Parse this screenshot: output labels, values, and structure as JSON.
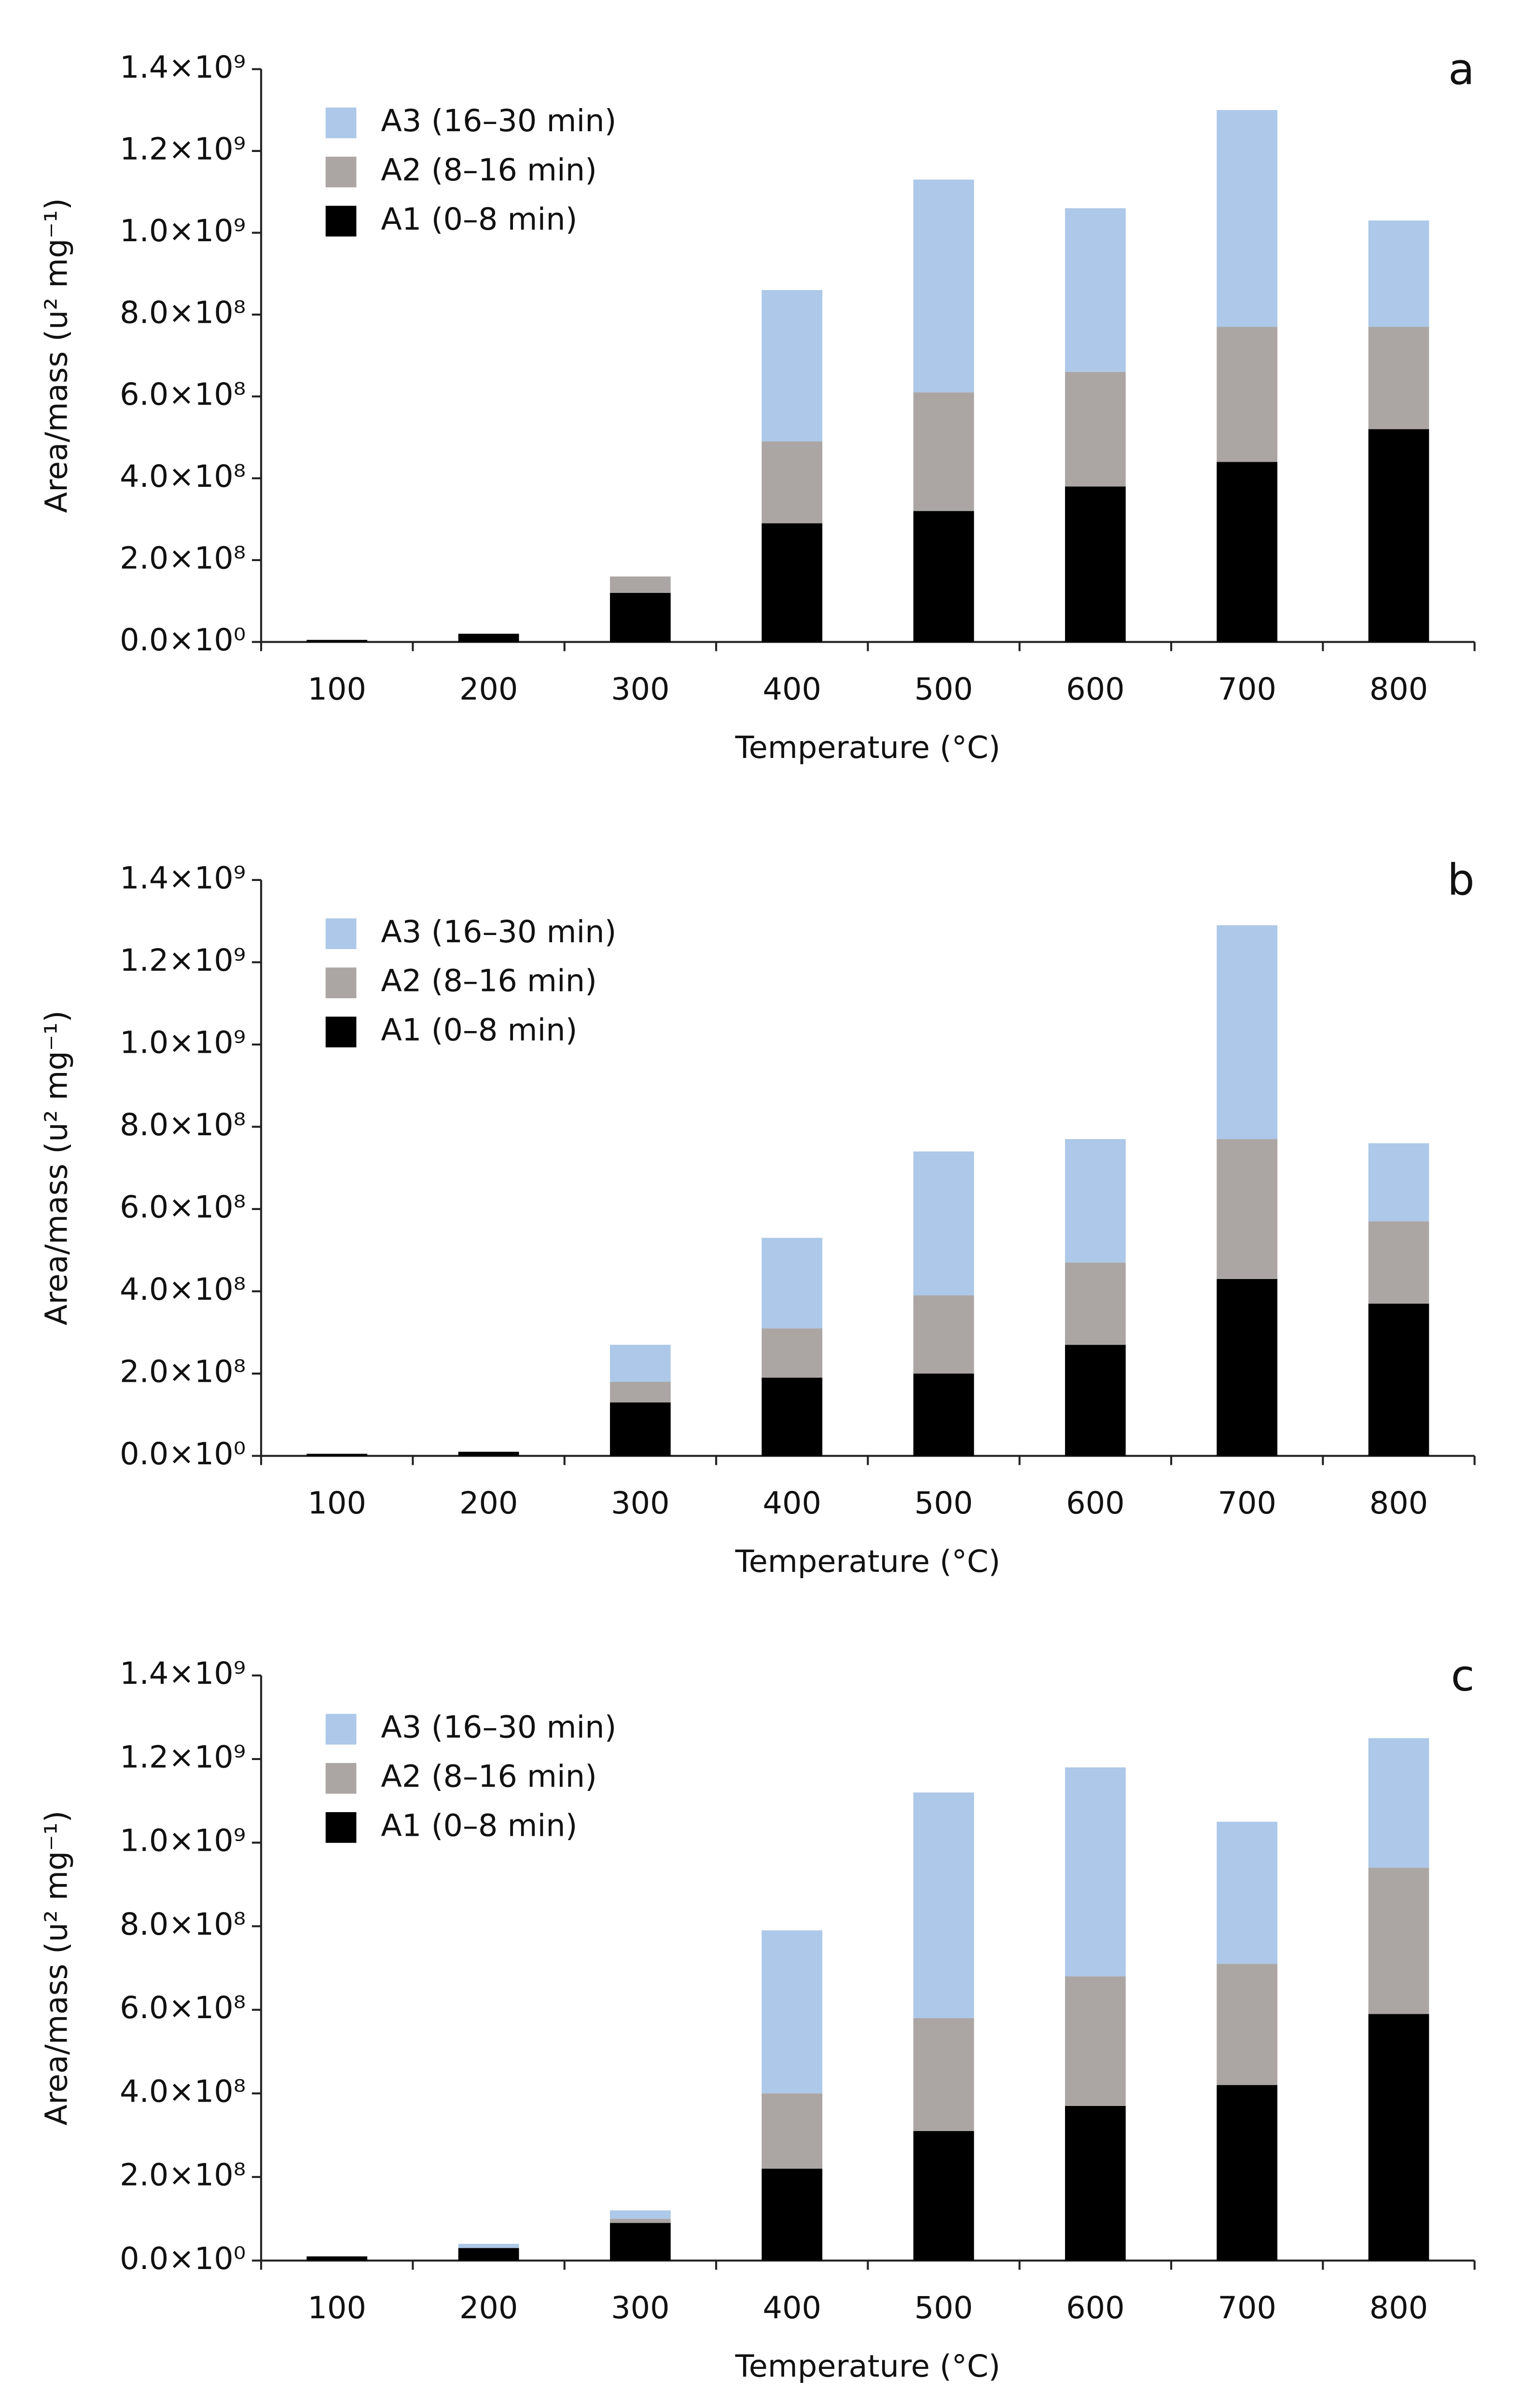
{
  "chart_data": [
    {
      "type": "stacked_bar",
      "panel_label": "a",
      "x_label": "Temperature (°C)",
      "y_label": "Area/mass (u² mg⁻¹)",
      "categories": [
        "100",
        "200",
        "300",
        "400",
        "500",
        "600",
        "700",
        "800"
      ],
      "series": [
        {
          "name": "A1 (0–8 min)",
          "color": "#000000",
          "values": [
            5000000,
            20000000,
            120000000,
            290000000,
            320000000,
            380000000,
            440000000,
            520000000
          ]
        },
        {
          "name": "A2 (8–16 min)",
          "color": "#aba6a4",
          "values": [
            0,
            0,
            40000000,
            200000000,
            290000000,
            280000000,
            330000000,
            250000000
          ]
        },
        {
          "name": "A3 (16–30 min)",
          "color": "#adc8e8",
          "values": [
            0,
            0,
            0,
            370000000,
            520000000,
            400000000,
            530000000,
            260000000
          ]
        }
      ],
      "ylim": [
        0,
        1400000000
      ],
      "yticks": [
        {
          "value": 0,
          "label": "0.0×10⁰"
        },
        {
          "value": 200000000,
          "label": "2.0×10⁸"
        },
        {
          "value": 400000000,
          "label": "4.0×10⁸"
        },
        {
          "value": 600000000,
          "label": "6.0×10⁸"
        },
        {
          "value": 800000000,
          "label": "8.0×10⁸"
        },
        {
          "value": 1000000000,
          "label": "1.0×10⁹"
        },
        {
          "value": 1200000000,
          "label": "1.2×10⁹"
        },
        {
          "value": 1400000000,
          "label": "1.4×10⁹"
        }
      ],
      "legend": "upper-left"
    },
    {
      "type": "stacked_bar",
      "panel_label": "b",
      "x_label": "Temperature (°C)",
      "y_label": "Area/mass (u² mg⁻¹)",
      "categories": [
        "100",
        "200",
        "300",
        "400",
        "500",
        "600",
        "700",
        "800"
      ],
      "series": [
        {
          "name": "A1 (0–8 min)",
          "color": "#000000",
          "values": [
            5000000,
            10000000,
            130000000,
            190000000,
            200000000,
            270000000,
            430000000,
            370000000
          ]
        },
        {
          "name": "A2 (8–16 min)",
          "color": "#aba6a4",
          "values": [
            0,
            0,
            50000000,
            120000000,
            190000000,
            200000000,
            340000000,
            200000000
          ]
        },
        {
          "name": "A3 (16–30 min)",
          "color": "#adc8e8",
          "values": [
            0,
            0,
            90000000,
            220000000,
            350000000,
            300000000,
            520000000,
            190000000
          ]
        }
      ],
      "ylim": [
        0,
        1400000000
      ],
      "yticks": [
        {
          "value": 0,
          "label": "0.0×10⁰"
        },
        {
          "value": 200000000,
          "label": "2.0×10⁸"
        },
        {
          "value": 400000000,
          "label": "4.0×10⁸"
        },
        {
          "value": 600000000,
          "label": "6.0×10⁸"
        },
        {
          "value": 800000000,
          "label": "8.0×10⁸"
        },
        {
          "value": 1000000000,
          "label": "1.0×10⁹"
        },
        {
          "value": 1200000000,
          "label": "1.2×10⁹"
        },
        {
          "value": 1400000000,
          "label": "1.4×10⁹"
        }
      ],
      "legend": "upper-left"
    },
    {
      "type": "stacked_bar",
      "panel_label": "c",
      "x_label": "Temperature (°C)",
      "y_label": "Area/mass (u² mg⁻¹)",
      "categories": [
        "100",
        "200",
        "300",
        "400",
        "500",
        "600",
        "700",
        "800"
      ],
      "series": [
        {
          "name": "A1 (0–8 min)",
          "color": "#000000",
          "values": [
            10000000,
            30000000,
            90000000,
            220000000,
            310000000,
            370000000,
            420000000,
            590000000
          ]
        },
        {
          "name": "A2 (8–16 min)",
          "color": "#aba6a4",
          "values": [
            0,
            0,
            10000000,
            180000000,
            270000000,
            310000000,
            290000000,
            350000000
          ]
        },
        {
          "name": "A3 (16–30 min)",
          "color": "#adc8e8",
          "values": [
            0,
            10000000,
            20000000,
            390000000,
            540000000,
            500000000,
            340000000,
            310000000
          ]
        }
      ],
      "ylim": [
        0,
        1400000000
      ],
      "yticks": [
        {
          "value": 0,
          "label": "0.0×10⁰"
        },
        {
          "value": 200000000,
          "label": "2.0×10⁸"
        },
        {
          "value": 400000000,
          "label": "4.0×10⁸"
        },
        {
          "value": 600000000,
          "label": "6.0×10⁸"
        },
        {
          "value": 800000000,
          "label": "8.0×10⁸"
        },
        {
          "value": 1000000000,
          "label": "1.0×10⁹"
        },
        {
          "value": 1200000000,
          "label": "1.2×10⁹"
        },
        {
          "value": 1400000000,
          "label": "1.4×10⁹"
        }
      ],
      "legend": "upper-left"
    }
  ]
}
